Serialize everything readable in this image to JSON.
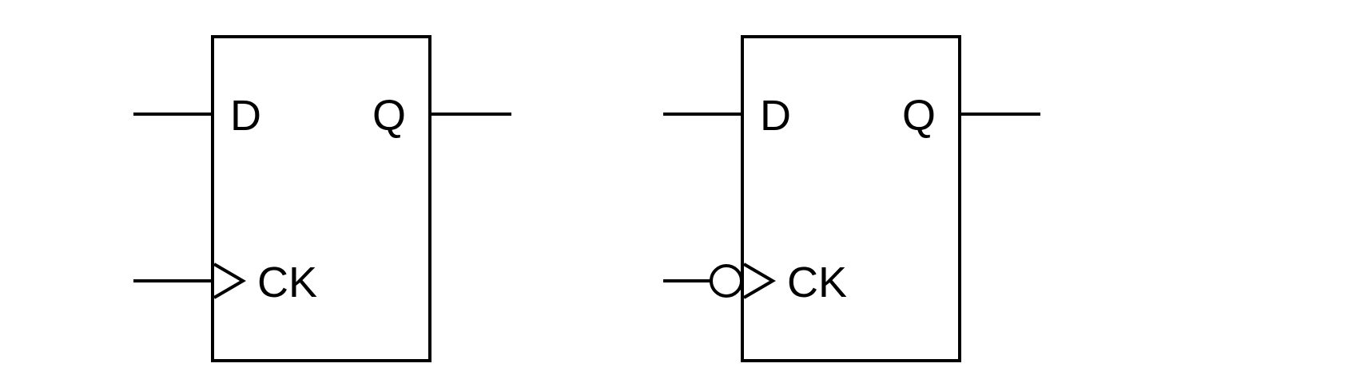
{
  "colors": {
    "background": "#ffffff",
    "stroke": "#000000"
  },
  "flip_flops": [
    {
      "kind": "rising-edge",
      "labels": {
        "data": "D",
        "output": "Q",
        "clock": "CK"
      }
    },
    {
      "kind": "falling-edge",
      "labels": {
        "data": "D",
        "output": "Q",
        "clock": "CK"
      }
    }
  ]
}
